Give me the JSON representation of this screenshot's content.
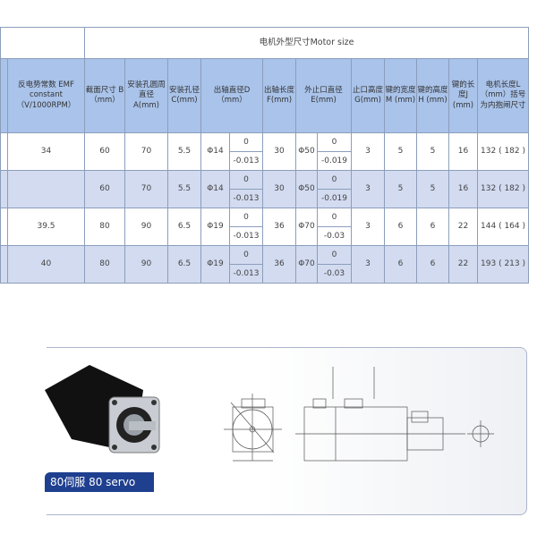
{
  "table": {
    "group_header": "电机外型尺寸Motor size",
    "headers": {
      "emf": "反电势常数 EMF constant （V/1000RPM）",
      "B": "截面尺寸 B （mm）",
      "A": "安装孔圆周直径 A(mm)",
      "C": "安装孔径 C(mm)",
      "D": "出轴直径D （mm）",
      "F": "出轴长度 F(mm)",
      "E": "外止口直径 E(mm)",
      "G": "止口高度 G(mm)",
      "M": "键的宽度M (mm)",
      "H": "键的高度H (mm)",
      "J": "键的长度J (mm)",
      "L": "电机长度L （mm）括号为内抱闸尺寸"
    },
    "rows": [
      {
        "emf": "34",
        "B": "60",
        "A": "70",
        "C": "5.5",
        "D": "Φ14",
        "D_up": "0",
        "D_low": "-0.013",
        "F": "30",
        "E": "Φ50",
        "E_up": "0",
        "E_low": "-0.019",
        "G": "3",
        "M": "5",
        "H": "5",
        "J": "16",
        "L": "132 ( 182 )"
      },
      {
        "emf": "",
        "B": "60",
        "A": "70",
        "C": "5.5",
        "D": "Φ14",
        "D_up": "0",
        "D_low": "-0.013",
        "F": "30",
        "E": "Φ50",
        "E_up": "0",
        "E_low": "-0.019",
        "G": "3",
        "M": "5",
        "H": "5",
        "J": "16",
        "L": "132 ( 182 )"
      },
      {
        "emf": "39.5",
        "B": "80",
        "A": "90",
        "C": "6.5",
        "D": "Φ19",
        "D_up": "0",
        "D_low": "-0.013",
        "F": "36",
        "E": "Φ70",
        "E_up": "0",
        "E_low": "-0.03",
        "G": "3",
        "M": "6",
        "H": "6",
        "J": "22",
        "L": "144 ( 164 )"
      },
      {
        "emf": "40",
        "B": "80",
        "A": "90",
        "C": "6.5",
        "D": "Φ19",
        "D_up": "0",
        "D_low": "-0.013",
        "F": "36",
        "E": "Φ70",
        "E_up": "0",
        "E_low": "-0.03",
        "G": "3",
        "M": "6",
        "H": "6",
        "J": "22",
        "L": "193 ( 213 )"
      }
    ]
  },
  "product": {
    "label": "80伺服 80 servo"
  },
  "colors": {
    "header_blue": "#a9c3ea",
    "alt_row": "#d2dbf0",
    "label_bg": "#1f3f8f"
  }
}
